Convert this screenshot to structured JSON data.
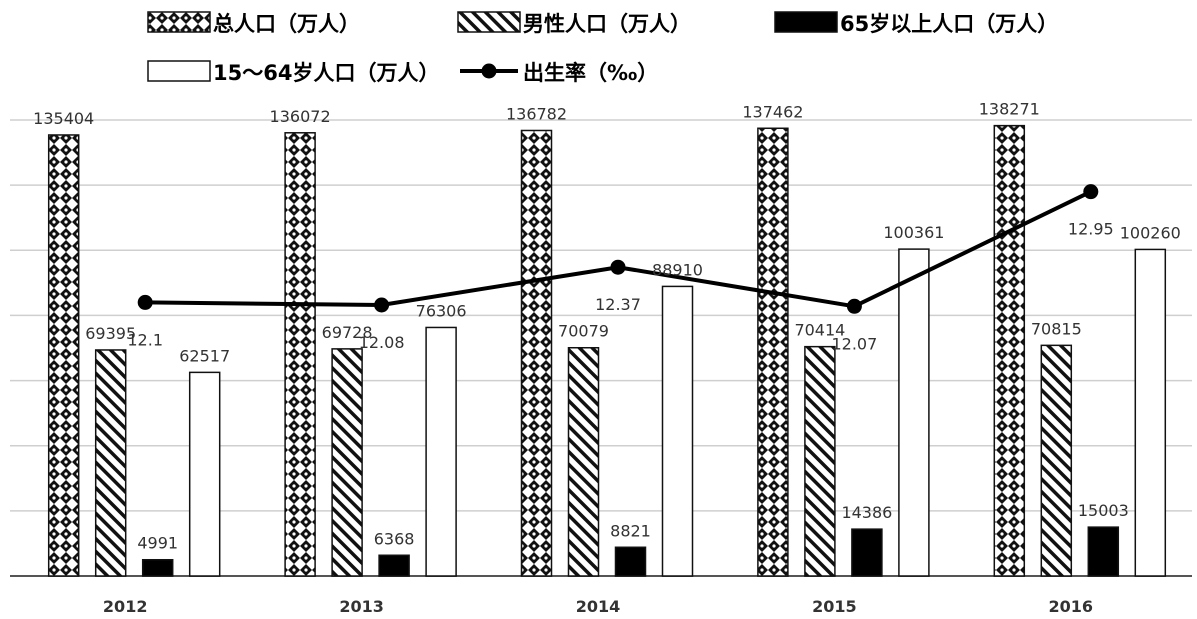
{
  "chart_data": {
    "type": "bar",
    "categories": [
      "2012",
      "2013",
      "2014",
      "2015",
      "2016"
    ],
    "series": [
      {
        "name": "总人口（万人）",
        "kind": "bar",
        "pattern": "diamond",
        "values": [
          135404,
          136072,
          136782,
          137462,
          138271
        ]
      },
      {
        "name": "男性人口（万人）",
        "kind": "bar",
        "pattern": "hatch",
        "values": [
          69395,
          69728,
          70079,
          70414,
          70815
        ]
      },
      {
        "name": "65岁以上人口（万人）",
        "kind": "bar",
        "pattern": "solid",
        "values": [
          4991,
          6368,
          8821,
          14386,
          15003
        ]
      },
      {
        "name": "15～64岁人口（万人）",
        "kind": "bar",
        "pattern": "empty",
        "values": [
          62517,
          76306,
          88910,
          100361,
          100260
        ]
      },
      {
        "name": "出生率（‰）",
        "kind": "line",
        "values": [
          12.1,
          12.08,
          12.37,
          12.07,
          12.95
        ]
      }
    ],
    "ylim": [
      0,
      140000
    ],
    "line_ylim": [
      10,
      13.5
    ],
    "grid": true,
    "legend_position": "top",
    "title": "",
    "xlabel": "",
    "ylabel": ""
  }
}
